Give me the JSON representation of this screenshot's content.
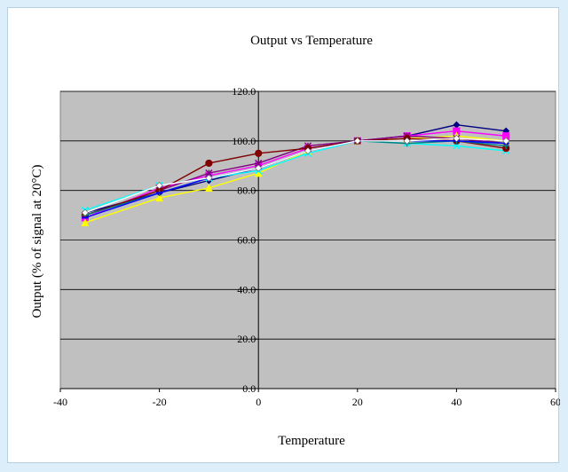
{
  "chart_data": {
    "type": "line",
    "title": "Output vs Temperature",
    "xlabel": "Temperature",
    "ylabel": "Output (% of signal at 20°C)",
    "xlim": [
      -40,
      60
    ],
    "ylim": [
      0,
      120
    ],
    "xticks": [
      -40,
      -20,
      0,
      20,
      40,
      60
    ],
    "xtick_labels": [
      "-40",
      "-20",
      "0",
      "20",
      "40",
      "60"
    ],
    "yticks": [
      0,
      20,
      40,
      60,
      80,
      100,
      120
    ],
    "ytick_labels": [
      "0.0",
      "20.0",
      "40.0",
      "60.0",
      "80.0",
      "100.0",
      "120.0"
    ],
    "grid": true,
    "legend": "none",
    "plot_background": "#c0c0c0",
    "series": [
      {
        "color": "#000080",
        "marker": "diamond",
        "points": [
          [
            -35,
            71
          ],
          [
            -20,
            79
          ],
          [
            -10,
            84
          ],
          [
            0,
            89
          ],
          [
            10,
            96
          ],
          [
            20,
            100
          ],
          [
            30,
            102
          ],
          [
            40,
            106.5
          ],
          [
            50,
            104
          ]
        ]
      },
      {
        "color": "#ff00ff",
        "marker": "square",
        "points": [
          [
            -35,
            69
          ],
          [
            -20,
            81
          ],
          [
            -10,
            86
          ],
          [
            0,
            90
          ],
          [
            10,
            97
          ],
          [
            20,
            100
          ],
          [
            30,
            102
          ],
          [
            40,
            104
          ],
          [
            50,
            102
          ]
        ]
      },
      {
        "color": "#ffff00",
        "marker": "triangle",
        "points": [
          [
            -35,
            67
          ],
          [
            -20,
            77
          ],
          [
            -10,
            81
          ],
          [
            0,
            87
          ],
          [
            10,
            96
          ],
          [
            20,
            100
          ],
          [
            30,
            101
          ],
          [
            40,
            102
          ],
          [
            50,
            100
          ]
        ]
      },
      {
        "color": "#00ffff",
        "marker": "x",
        "points": [
          [
            -35,
            72
          ],
          [
            -20,
            82
          ],
          [
            -10,
            85
          ],
          [
            0,
            88
          ],
          [
            10,
            95
          ],
          [
            20,
            100
          ],
          [
            30,
            99
          ],
          [
            40,
            98
          ],
          [
            50,
            96
          ]
        ]
      },
      {
        "color": "#800080",
        "marker": "star",
        "points": [
          [
            -35,
            70
          ],
          [
            -20,
            80
          ],
          [
            -10,
            87
          ],
          [
            0,
            91
          ],
          [
            10,
            98
          ],
          [
            20,
            100
          ],
          [
            30,
            102
          ],
          [
            40,
            101
          ],
          [
            50,
            99
          ]
        ]
      },
      {
        "color": "#800000",
        "marker": "circle",
        "points": [
          [
            -35,
            70
          ],
          [
            -20,
            80
          ],
          [
            -10,
            91
          ],
          [
            0,
            95
          ],
          [
            10,
            97
          ],
          [
            20,
            100
          ],
          [
            30,
            101
          ],
          [
            40,
            100
          ],
          [
            50,
            97
          ]
        ]
      },
      {
        "color": "#008080",
        "marker": "plus",
        "points": [
          [
            -35,
            70
          ],
          [
            -20,
            79
          ],
          [
            -10,
            85
          ],
          [
            0,
            89
          ],
          [
            10,
            96
          ],
          [
            20,
            100
          ],
          [
            30,
            99
          ],
          [
            40,
            100
          ],
          [
            50,
            98
          ]
        ]
      },
      {
        "color": "#0000ff",
        "marker": "dash",
        "points": [
          [
            -35,
            69
          ],
          [
            -20,
            79
          ],
          [
            -10,
            85
          ],
          [
            0,
            89
          ],
          [
            10,
            96
          ],
          [
            20,
            100
          ],
          [
            30,
            100
          ],
          [
            40,
            100
          ],
          [
            50,
            99
          ]
        ]
      },
      {
        "color": "#ffffff",
        "marker": "diamond",
        "points": [
          [
            -35,
            71
          ],
          [
            -20,
            82
          ],
          [
            -10,
            85
          ],
          [
            0,
            89
          ],
          [
            10,
            96
          ],
          [
            20,
            100
          ],
          [
            30,
            100
          ],
          [
            40,
            101
          ],
          [
            50,
            100
          ]
        ]
      }
    ]
  }
}
